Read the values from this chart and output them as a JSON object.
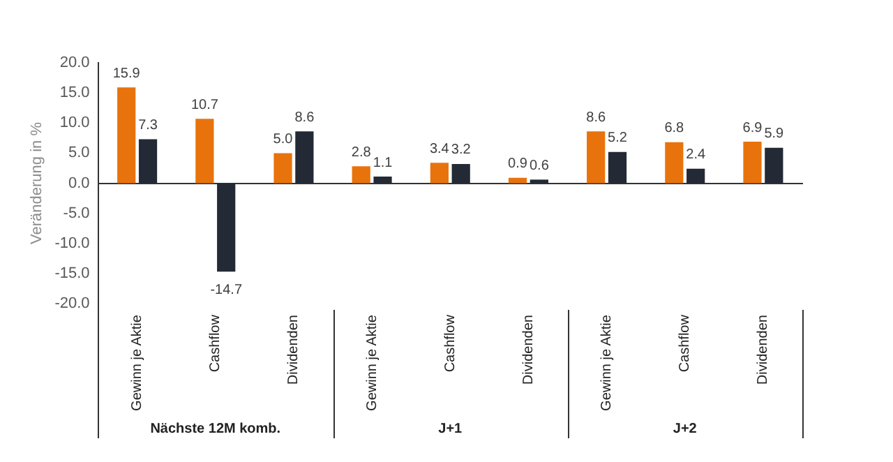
{
  "chart_data": {
    "type": "bar",
    "ylabel": "Veränderung in %",
    "categories": [
      "Gewinn je Aktie",
      "Cashflow",
      "Dividenden",
      "Gewinn je Aktie",
      "Cashflow",
      "Dividenden",
      "Gewinn je Aktie",
      "Cashflow",
      "Dividenden"
    ],
    "series": [
      {
        "color": "#e8730c",
        "values": [
          15.9,
          10.7,
          5.0,
          2.8,
          3.4,
          0.9,
          8.6,
          6.8,
          6.9
        ],
        "value_labels": [
          "15.9",
          "10.7",
          "5.0",
          "2.8",
          "3.4",
          "0.9",
          "8.6",
          "6.8",
          "6.9"
        ]
      },
      {
        "color": "#232a36",
        "values": [
          7.3,
          -14.7,
          8.6,
          1.1,
          3.2,
          0.6,
          5.2,
          2.4,
          5.9
        ],
        "value_labels": [
          "7.3",
          "-14.7",
          "8.6",
          "1.1",
          "3.2",
          "0.6",
          "5.2",
          "2.4",
          "5.9"
        ]
      }
    ],
    "ylim": [
      -20,
      20
    ],
    "yticks": [
      {
        "value": -20,
        "label": "-20.0"
      },
      {
        "value": -15,
        "label": "-15.0"
      },
      {
        "value": -10,
        "label": "-10.0"
      },
      {
        "value": -5,
        "label": "-5.0"
      },
      {
        "value": 0,
        "label": "0.0"
      },
      {
        "value": 5,
        "label": "5.0"
      },
      {
        "value": 10,
        "label": "10.0"
      },
      {
        "value": 15,
        "label": "15.0"
      },
      {
        "value": 20,
        "label": "20.0"
      }
    ],
    "legend": false,
    "annotations": [
      "Nächste 12M komb.",
      "J+1",
      "J+2"
    ]
  }
}
